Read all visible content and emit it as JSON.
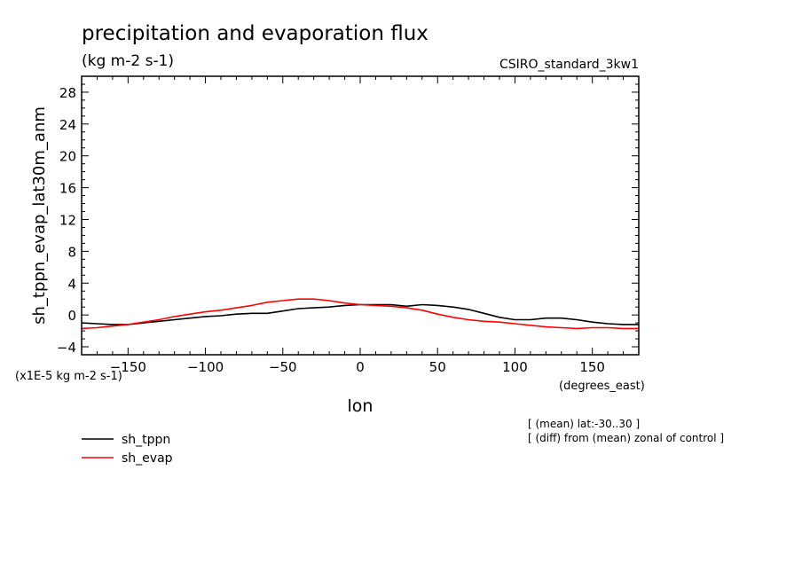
{
  "header": {
    "title": "precipitation and evaporation flux",
    "units": "(kg m-2 s-1)",
    "model": "CSIRO_standard_3kw1"
  },
  "notes": {
    "scale": "(x1E-5 kg m-2 s-1)",
    "x_units": "(degrees_east)",
    "mean_note": "[ (mean) lat:-30..30 ]",
    "diff_note": "[ (diff) from (mean) zonal of control ]"
  },
  "chart_data": {
    "type": "line",
    "title": "precipitation and evaporation flux",
    "xlabel": "lon",
    "ylabel": "sh_tppn_evap_lat30m_anm",
    "xlim": [
      -180,
      180
    ],
    "ylim": [
      -5,
      30
    ],
    "xticks": [
      -150,
      -100,
      -50,
      0,
      50,
      100,
      150
    ],
    "yticks": [
      -4,
      0,
      4,
      8,
      12,
      16,
      20,
      24,
      28
    ],
    "legend_position": "bottom-left, below plot",
    "grid": false,
    "series": [
      {
        "name": "sh_tppn",
        "color": "#000000",
        "x": [
          -180,
          -170,
          -160,
          -150,
          -140,
          -130,
          -120,
          -110,
          -100,
          -90,
          -80,
          -70,
          -60,
          -50,
          -40,
          -30,
          -20,
          -10,
          0,
          10,
          20,
          30,
          40,
          50,
          60,
          70,
          80,
          90,
          100,
          110,
          120,
          130,
          140,
          150,
          160,
          170,
          180
        ],
        "values": [
          -1.0,
          -1.1,
          -1.2,
          -1.2,
          -1.0,
          -0.8,
          -0.6,
          -0.4,
          -0.2,
          -0.1,
          0.1,
          0.2,
          0.2,
          0.5,
          0.8,
          0.9,
          1.0,
          1.2,
          1.3,
          1.3,
          1.3,
          1.1,
          1.3,
          1.2,
          1.0,
          0.7,
          0.2,
          -0.3,
          -0.6,
          -0.6,
          -0.4,
          -0.4,
          -0.6,
          -0.9,
          -1.1,
          -1.2,
          -1.2
        ]
      },
      {
        "name": "sh_evap",
        "color": "#ff0000",
        "x": [
          -180,
          -170,
          -160,
          -150,
          -140,
          -130,
          -120,
          -110,
          -100,
          -90,
          -80,
          -70,
          -60,
          -50,
          -40,
          -30,
          -20,
          -10,
          0,
          10,
          20,
          30,
          40,
          50,
          60,
          70,
          80,
          90,
          100,
          110,
          120,
          130,
          140,
          150,
          160,
          170,
          180
        ],
        "values": [
          -1.7,
          -1.6,
          -1.4,
          -1.2,
          -0.9,
          -0.6,
          -0.2,
          0.1,
          0.4,
          0.6,
          0.9,
          1.2,
          1.6,
          1.8,
          2.0,
          2.0,
          1.8,
          1.5,
          1.3,
          1.2,
          1.1,
          0.9,
          0.6,
          0.1,
          -0.3,
          -0.6,
          -0.8,
          -0.9,
          -1.1,
          -1.3,
          -1.5,
          -1.6,
          -1.7,
          -1.6,
          -1.6,
          -1.7,
          -1.7
        ]
      }
    ]
  }
}
